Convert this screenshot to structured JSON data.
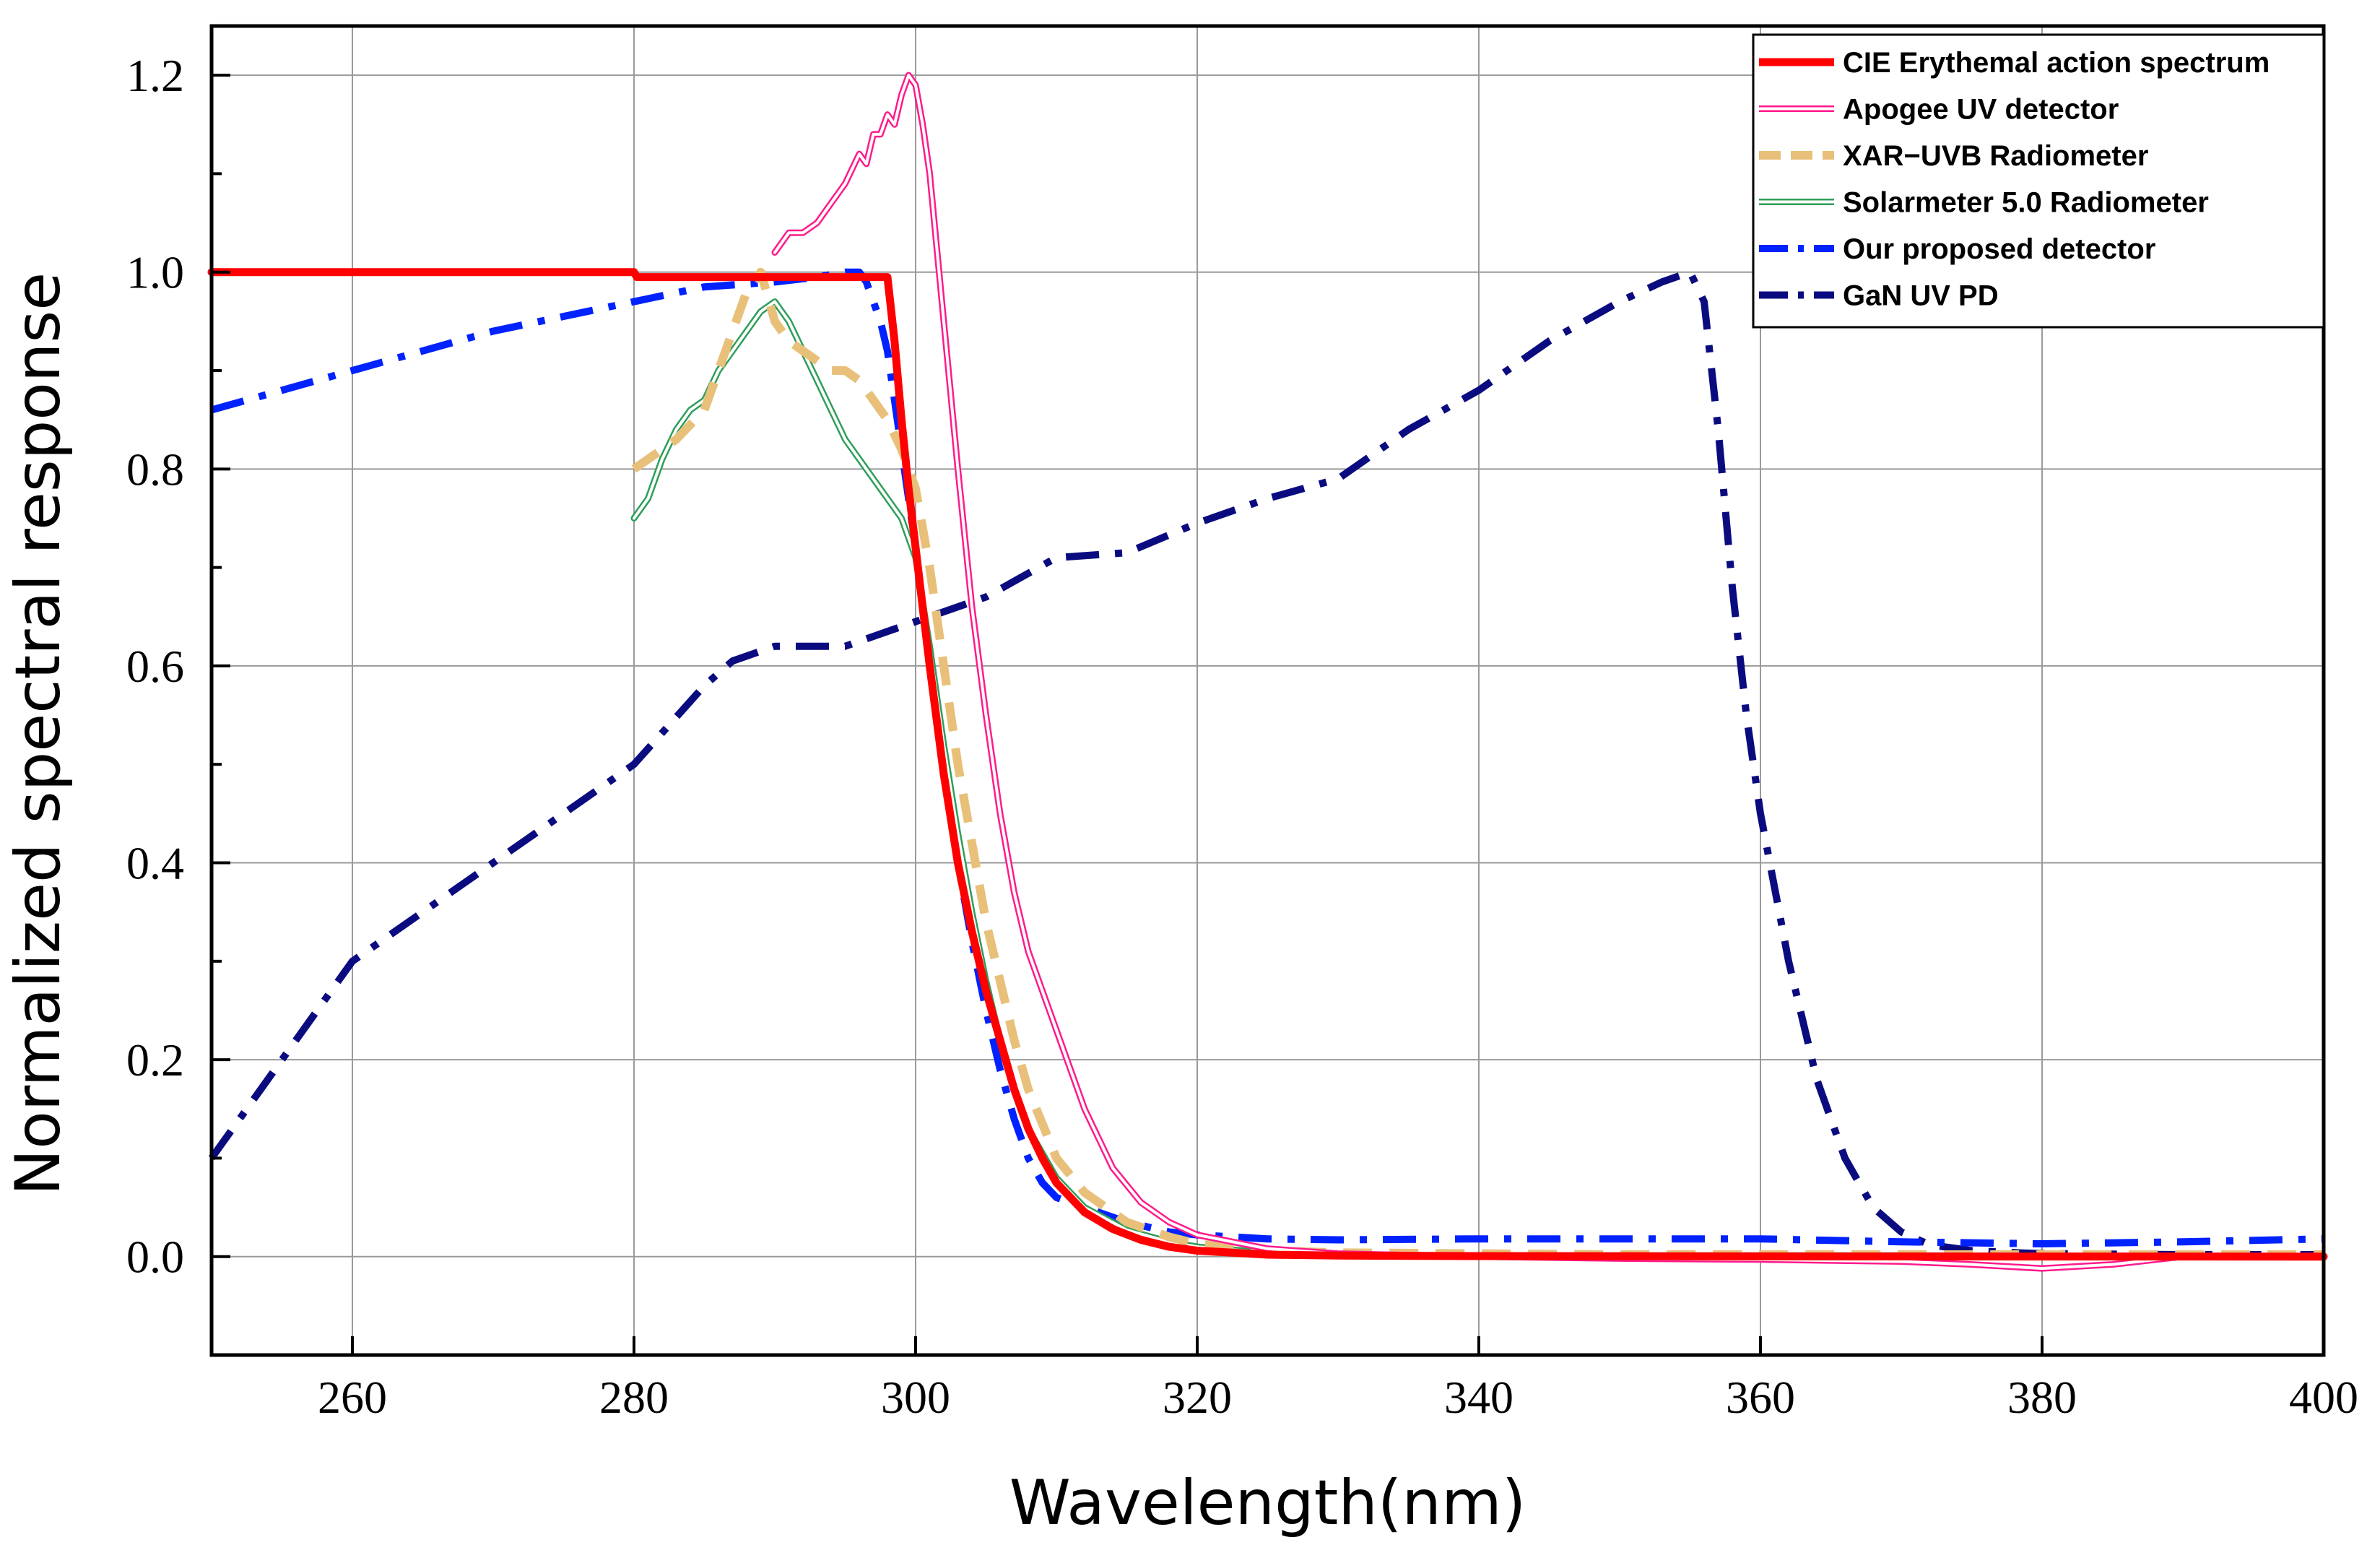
{
  "chart_data": {
    "type": "line",
    "title": "",
    "xlabel": "Wavelength(nm)",
    "ylabel": "Normalized spectral response",
    "xlim": [
      250,
      400
    ],
    "ylim": [
      -0.1,
      1.25
    ],
    "xticks": [
      260,
      280,
      300,
      320,
      340,
      360,
      380,
      400
    ],
    "xtick_labels": [
      "260",
      "280",
      "300",
      "320",
      "340",
      "360",
      "380",
      "400"
    ],
    "yticks": [
      0.0,
      0.2,
      0.4,
      0.6,
      0.8,
      1.0,
      1.2
    ],
    "ytick_labels": [
      "0.0",
      "0.2",
      "0.4",
      "0.6",
      "0.8",
      "1.0",
      "1.2"
    ],
    "grid": true,
    "legend_position": "top-right",
    "series": [
      {
        "name": "CIE Erythemal action spectrum",
        "color": "#ff0000",
        "style": "solid-thick",
        "x": [
          250,
          280,
          280.2,
          298,
          298.5,
          299,
          299.5,
          300,
          301,
          302,
          303,
          304,
          305,
          306,
          307,
          308,
          309,
          310,
          312,
          314,
          316,
          318,
          320,
          325,
          330,
          340,
          360,
          380,
          400
        ],
        "y": [
          1.0,
          1.0,
          0.995,
          0.995,
          0.93,
          0.85,
          0.78,
          0.72,
          0.6,
          0.49,
          0.4,
          0.33,
          0.27,
          0.22,
          0.17,
          0.13,
          0.1,
          0.075,
          0.045,
          0.028,
          0.017,
          0.01,
          0.006,
          0.002,
          0.001,
          0.0005,
          0.0002,
          0.0001,
          0.0
        ]
      },
      {
        "name": "Apogee UV detector",
        "color": "#ff1a8c",
        "style": "double-line",
        "x": [
          290,
          291,
          292,
          293,
          294,
          295,
          296,
          296.5,
          297,
          297.5,
          298,
          298.5,
          299,
          299.5,
          300,
          300.5,
          301,
          302,
          303,
          304,
          305,
          306,
          307,
          308,
          310,
          312,
          314,
          316,
          318,
          320,
          325,
          330,
          340,
          350,
          360,
          370,
          375,
          380,
          385,
          390
        ],
        "y": [
          1.02,
          1.04,
          1.04,
          1.05,
          1.07,
          1.09,
          1.12,
          1.11,
          1.14,
          1.14,
          1.16,
          1.15,
          1.18,
          1.2,
          1.19,
          1.15,
          1.1,
          0.95,
          0.8,
          0.66,
          0.55,
          0.45,
          0.37,
          0.31,
          0.23,
          0.15,
          0.09,
          0.055,
          0.035,
          0.022,
          0.008,
          0.003,
          0.0,
          -0.002,
          -0.003,
          -0.005,
          -0.008,
          -0.012,
          -0.008,
          0.0
        ]
      },
      {
        "name": "XAR−UVB Radiometer",
        "color": "#e8c07a",
        "style": "dashed-thick",
        "x": [
          280,
          281,
          282,
          283,
          284,
          285,
          286,
          287,
          288,
          289,
          290,
          291,
          292,
          293,
          294,
          295,
          296,
          297,
          298,
          299,
          300,
          301,
          302,
          303,
          304,
          305,
          306,
          307,
          308,
          310,
          312,
          315,
          318,
          320,
          325,
          330,
          340,
          350,
          360,
          370,
          380,
          390,
          400
        ],
        "y": [
          0.8,
          0.81,
          0.82,
          0.83,
          0.845,
          0.86,
          0.9,
          0.94,
          0.98,
          1.0,
          0.95,
          0.93,
          0.92,
          0.91,
          0.9,
          0.9,
          0.89,
          0.87,
          0.85,
          0.82,
          0.78,
          0.7,
          0.6,
          0.5,
          0.42,
          0.34,
          0.28,
          0.22,
          0.17,
          0.1,
          0.065,
          0.035,
          0.02,
          0.013,
          0.006,
          0.004,
          0.003,
          0.002,
          0.002,
          0.002,
          0.002,
          0.002,
          0.002
        ]
      },
      {
        "name": "Solarmeter 5.0 Radiometer",
        "color": "#2e9e5a",
        "style": "double-line",
        "x": [
          280,
          281,
          282,
          283,
          284,
          285,
          286,
          287,
          288,
          289,
          290,
          291,
          292,
          293,
          294,
          295,
          296,
          297,
          298,
          299,
          300,
          301,
          302,
          303,
          304,
          305,
          306,
          307,
          308,
          310,
          312,
          315,
          318,
          320,
          325,
          330,
          340,
          350,
          360,
          370,
          380,
          390,
          400
        ],
        "y": [
          0.75,
          0.77,
          0.81,
          0.84,
          0.86,
          0.87,
          0.9,
          0.92,
          0.94,
          0.96,
          0.97,
          0.95,
          0.92,
          0.89,
          0.86,
          0.83,
          0.81,
          0.79,
          0.77,
          0.75,
          0.71,
          0.62,
          0.52,
          0.43,
          0.35,
          0.28,
          0.22,
          0.17,
          0.13,
          0.08,
          0.05,
          0.027,
          0.015,
          0.01,
          0.004,
          0.002,
          0.001,
          0.001,
          0.001,
          0.001,
          0.0005,
          0.0,
          0.0
        ]
      },
      {
        "name": "Our proposed detector",
        "color": "#0022ff",
        "style": "dash-dot-thick",
        "x": [
          250,
          260,
          270,
          280,
          285,
          290,
          293,
          295,
          296,
          296.5,
          297,
          297.5,
          298,
          298.5,
          299,
          300,
          301,
          302,
          303,
          304,
          305,
          306,
          307,
          308,
          309,
          310,
          311,
          313,
          315,
          318,
          320,
          325,
          330,
          340,
          350,
          360,
          370,
          380,
          390,
          400
        ],
        "y": [
          0.86,
          0.9,
          0.94,
          0.97,
          0.985,
          0.99,
          0.995,
          1.0,
          1.0,
          0.99,
          0.97,
          0.95,
          0.92,
          0.87,
          0.82,
          0.72,
          0.6,
          0.5,
          0.4,
          0.32,
          0.25,
          0.19,
          0.14,
          0.1,
          0.075,
          0.06,
          0.055,
          0.045,
          0.035,
          0.025,
          0.022,
          0.018,
          0.017,
          0.018,
          0.018,
          0.018,
          0.015,
          0.013,
          0.015,
          0.018
        ]
      },
      {
        "name": "GaN UV PD",
        "color": "#0b0b80",
        "style": "dash-dot-thick",
        "x": [
          250,
          260,
          270,
          280,
          285,
          287,
          290,
          292,
          295,
          300,
          305,
          310,
          315,
          320,
          325,
          330,
          335,
          340,
          345,
          350,
          353,
          355,
          356,
          357,
          358,
          359,
          360,
          362,
          364,
          366,
          368,
          370,
          372,
          375,
          378,
          380,
          390,
          400
        ],
        "y": [
          0.1,
          0.3,
          0.4,
          0.5,
          0.58,
          0.605,
          0.62,
          0.62,
          0.62,
          0.645,
          0.67,
          0.71,
          0.715,
          0.745,
          0.77,
          0.79,
          0.84,
          0.88,
          0.93,
          0.97,
          0.99,
          1.0,
          0.97,
          0.84,
          0.68,
          0.55,
          0.45,
          0.3,
          0.18,
          0.1,
          0.05,
          0.025,
          0.012,
          0.006,
          0.004,
          0.003,
          0.002,
          0.002
        ]
      }
    ]
  }
}
